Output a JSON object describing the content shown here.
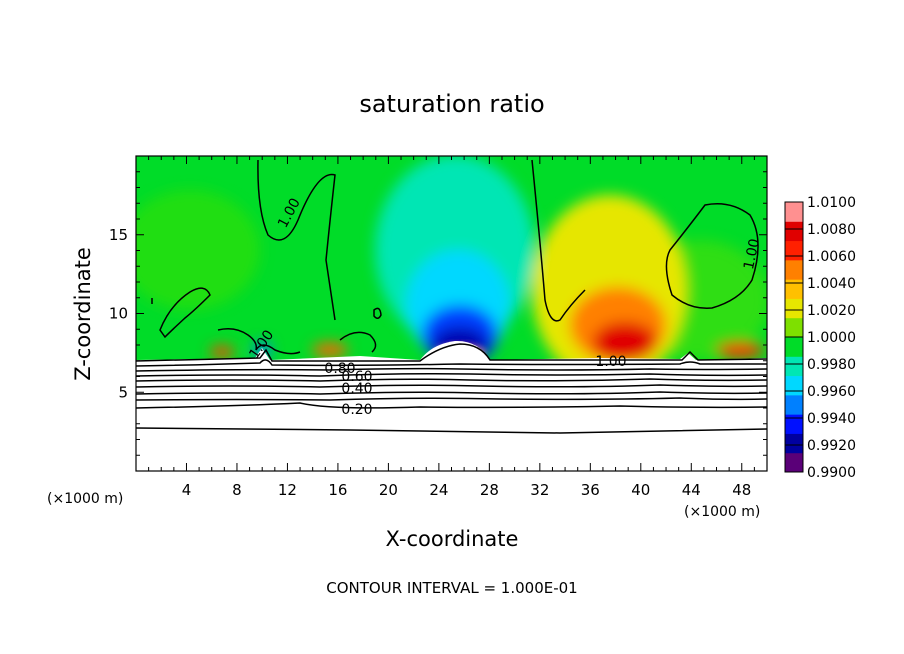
{
  "chart_data": {
    "type": "heatmap",
    "title": "saturation ratio",
    "xlabel": "X-coordinate",
    "ylabel": "Z-coordinate",
    "x_unit": "(×1000 m)",
    "y_unit": "(×1000 m)",
    "xlim": [
      0,
      50
    ],
    "ylim": [
      0,
      20
    ],
    "x_ticks": [
      4,
      8,
      12,
      16,
      20,
      24,
      28,
      32,
      36,
      40,
      44,
      48
    ],
    "y_ticks": [
      5,
      10,
      15
    ],
    "colorbar": {
      "min": 0.99,
      "max": 1.01,
      "ticks": [
        "1.0100",
        "1.0080",
        "1.0060",
        "1.0040",
        "1.0020",
        "1.0000",
        "0.9980",
        "0.9960",
        "0.9940",
        "0.9920",
        "0.9900"
      ],
      "colors": [
        "#5a0078",
        "#0000a0",
        "#0010ff",
        "#0080ff",
        "#00d8ff",
        "#00e6b4",
        "#00dc28",
        "#7ee000",
        "#e6e600",
        "#ffc000",
        "#ff8000",
        "#ff2000",
        "#e00000",
        "#ff9090"
      ]
    },
    "contour_labels": [
      "1.00",
      "1.00",
      "1.00",
      "1.00",
      "0.80",
      "0.60",
      "0.40",
      "0.20"
    ],
    "contour_interval_note": "CONTOUR INTERVAL = 1.000E-01"
  }
}
